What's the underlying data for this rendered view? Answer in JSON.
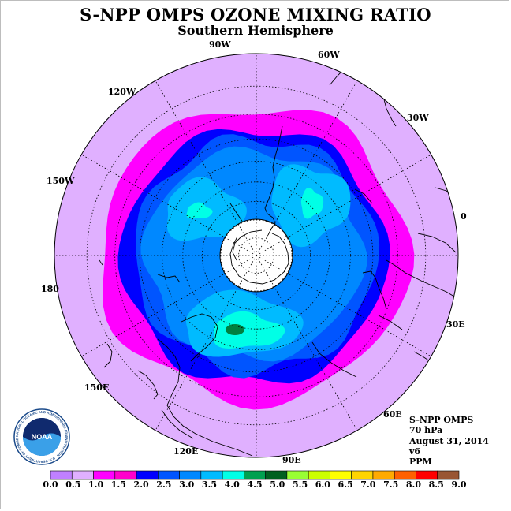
{
  "title": "S-NPP OMPS OZONE MIXING RATIO",
  "subtitle": "Southern Hemisphere",
  "longitude_labels": [
    "90W",
    "60W",
    "30W",
    "0",
    "30E",
    "60E",
    "90E",
    "120E",
    "150E",
    "180",
    "150W",
    "120W"
  ],
  "info": {
    "instrument": "S-NPP OMPS",
    "pressure": "70 hPa",
    "date": "August 31, 2014",
    "version": "v6",
    "units": "PPM"
  },
  "logo": {
    "name": "noaa-logo",
    "text": "NOAA",
    "ring_text": "NATIONAL OCEANIC AND ATMOSPHERIC ADMINISTRATION · U.S. DEPARTMENT OF COMMERCE"
  },
  "colorbar": {
    "ticks": [
      "0.0",
      "0.5",
      "1.0",
      "1.5",
      "2.0",
      "2.5",
      "3.0",
      "3.5",
      "4.0",
      "4.5",
      "5.0",
      "5.5",
      "6.0",
      "6.5",
      "7.0",
      "7.5",
      "8.0",
      "8.5",
      "9.0"
    ],
    "colors": [
      "#c080ff",
      "#e0b0ff",
      "#ff00ff",
      "#ff00cc",
      "#0000ff",
      "#0055ff",
      "#0088ff",
      "#00bbff",
      "#00ffe6",
      "#00a050",
      "#006020",
      "#99ff33",
      "#ccff00",
      "#ffff00",
      "#ffd400",
      "#ffaa00",
      "#ff6000",
      "#ff0000",
      "#995533"
    ]
  },
  "map_colors": {
    "outer": "#e0b0ff",
    "band_1_0": "#ff00ff",
    "band_1_5": "#0000ff",
    "band_2_0": "#0055ff",
    "band_2_5": "#0088ff",
    "band_3_0": "#00bbff",
    "band_3_5": "#00ffe6",
    "band_4_0": "#008040",
    "pole_hole": "#ffffff"
  },
  "chart_data": {
    "type": "heatmap",
    "projection": "polar stereographic, south pole",
    "variable": "ozone mixing ratio",
    "units": "PPM",
    "pressure_level": "70 hPa",
    "date": "August 31, 2014",
    "colorbar_range": [
      0.0,
      9.0
    ],
    "colorbar_step": 0.5,
    "features": [
      {
        "region": "outer mid-latitudes",
        "range": "0.5-1.0"
      },
      {
        "region": "ring near 50-60S",
        "range": "1.0-1.5"
      },
      {
        "region": "vortex edge ring",
        "range": "1.5-2.0"
      },
      {
        "region": "vortex interior",
        "range": "2.0-3.5"
      },
      {
        "region": "local maxima near 100W, 10W and 110E",
        "range": "3.5-4.0"
      },
      {
        "region": "small patch near 110E",
        "range": "4.0-4.5"
      },
      {
        "region": "over the pole",
        "range": "no data"
      }
    ]
  }
}
